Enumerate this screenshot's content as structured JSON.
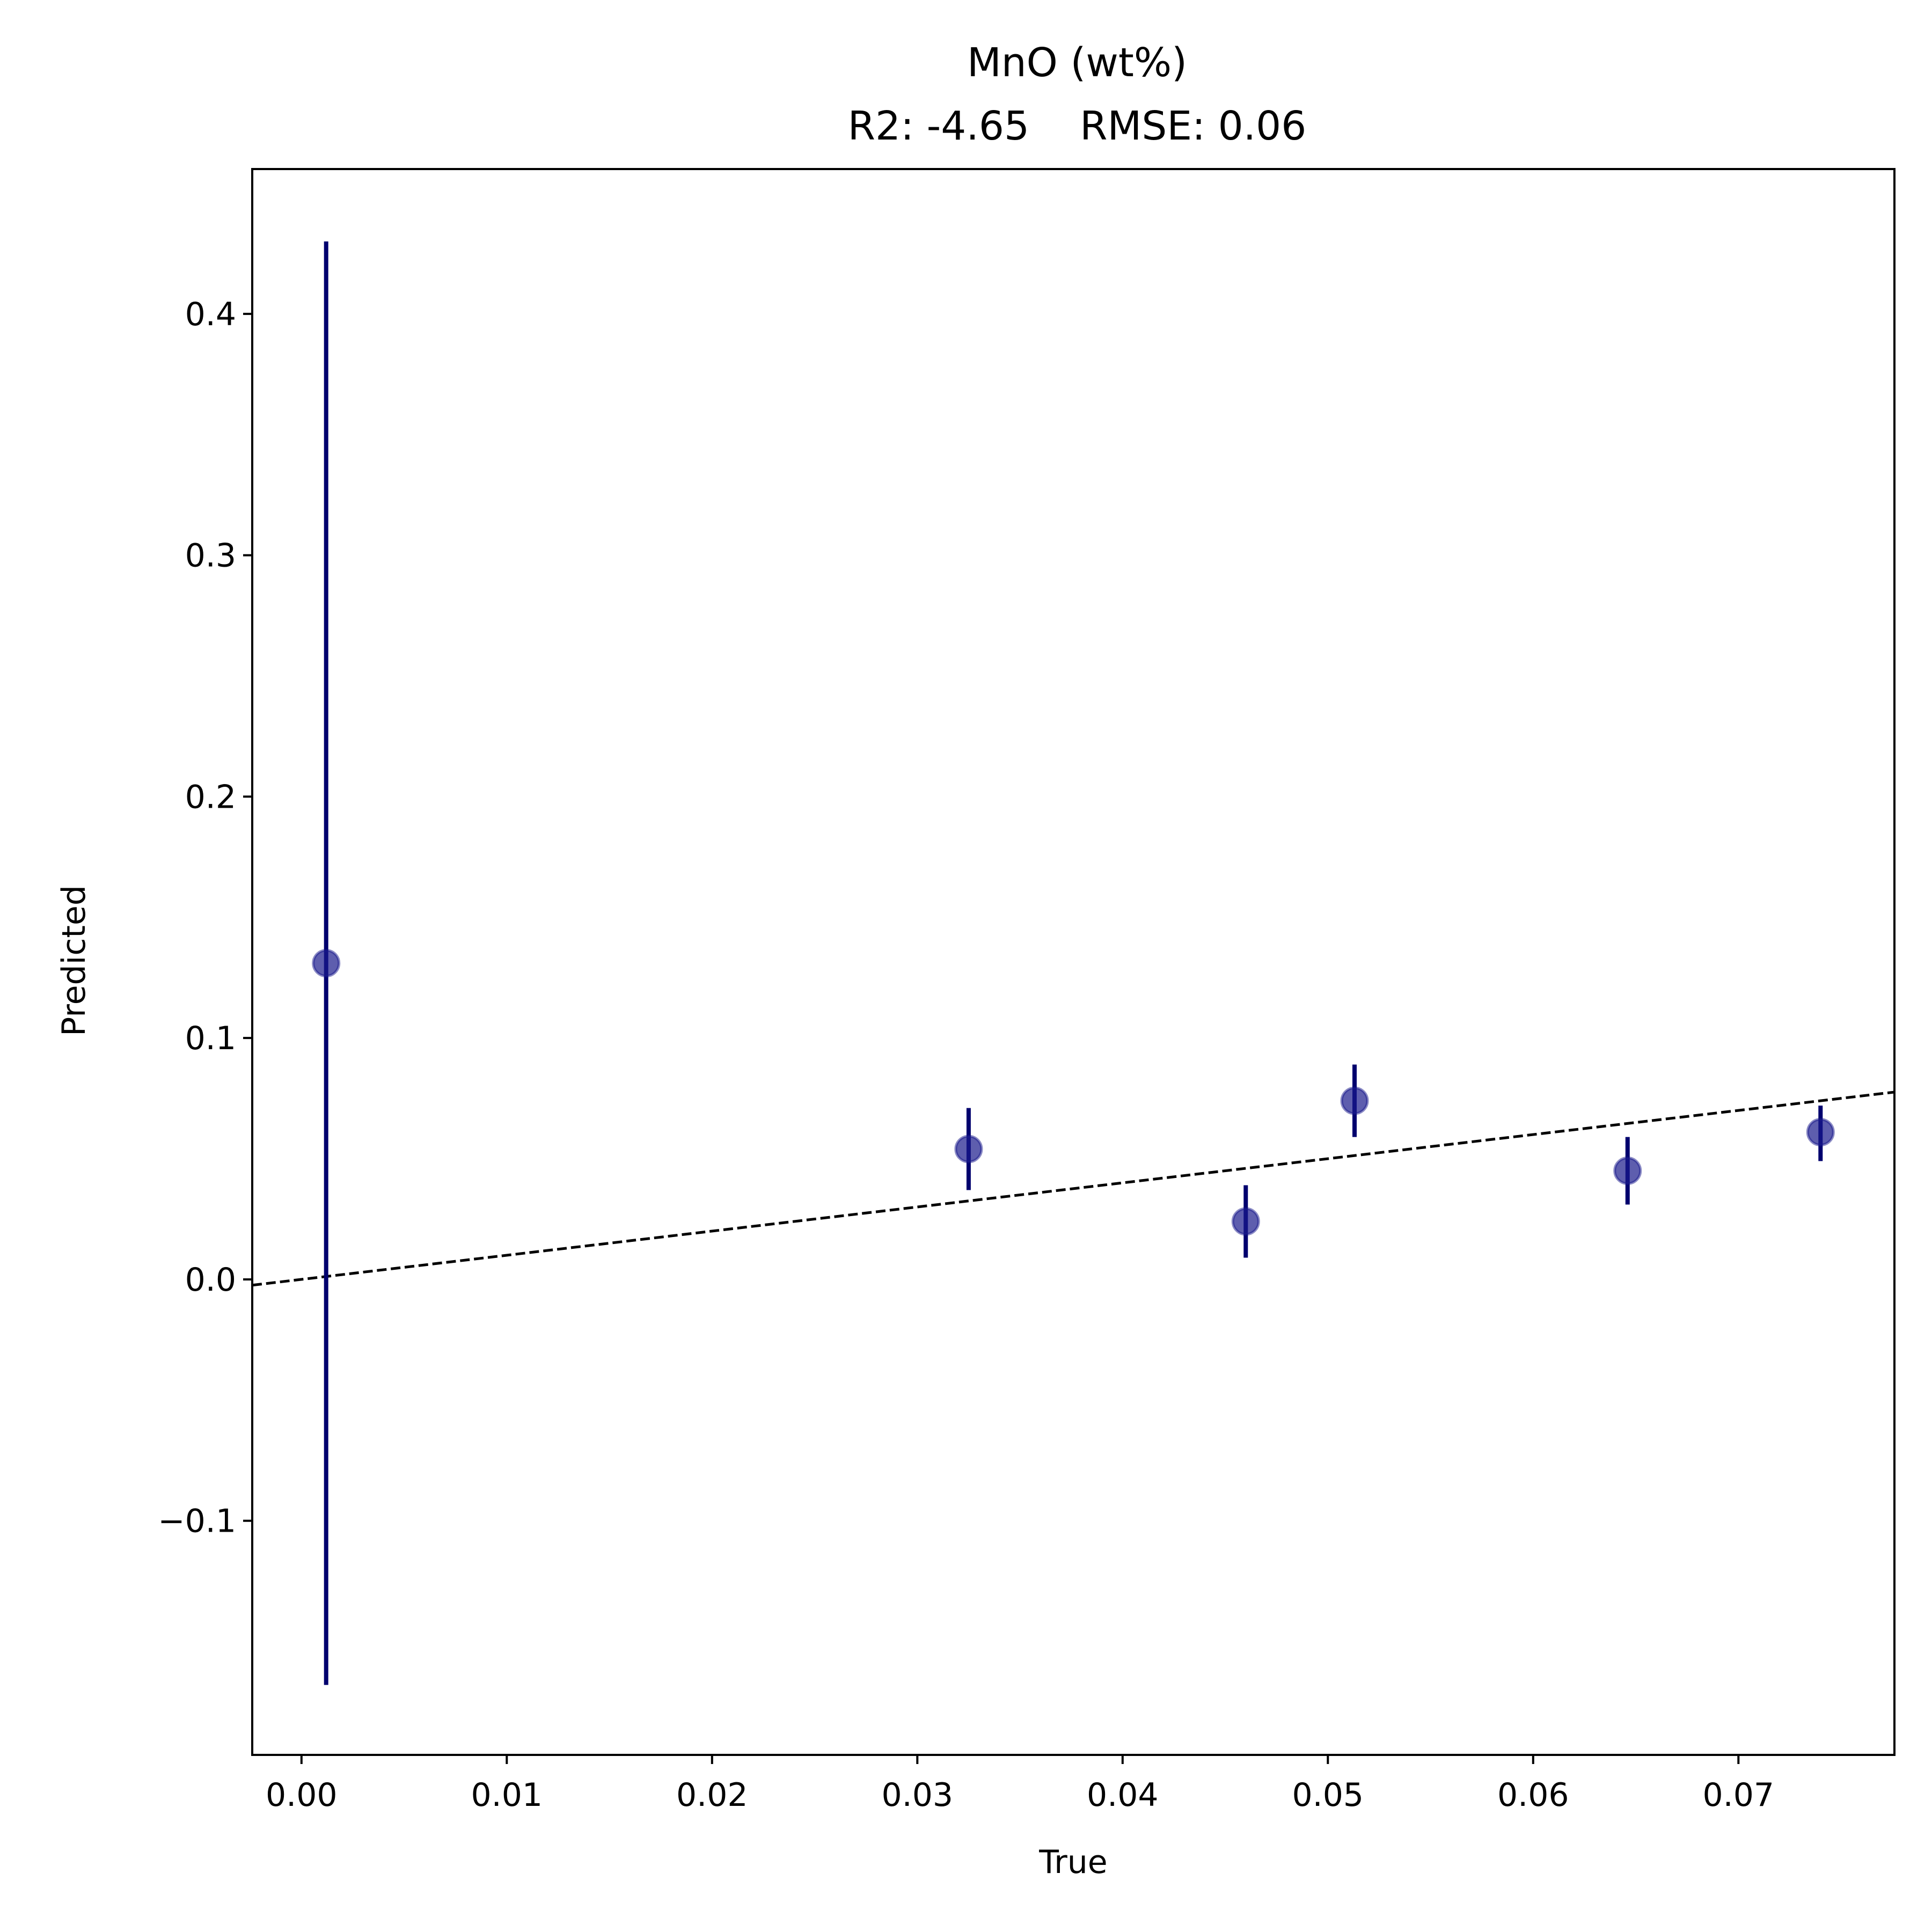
{
  "chart_data": {
    "type": "scatter",
    "title": "MnO (wt%)",
    "subtitle": "R2: -4.65    RMSE: 0.06",
    "xlabel": "True",
    "ylabel": "Predicted",
    "xlim": [
      -0.0024,
      0.0776
    ],
    "ylim": [
      -0.197,
      0.46
    ],
    "x_ticks": [
      0.0,
      0.01,
      0.02,
      0.03,
      0.04,
      0.05,
      0.06,
      0.07
    ],
    "x_tick_labels": [
      "0.00",
      "0.01",
      "0.02",
      "0.03",
      "0.04",
      "0.05",
      "0.06",
      "0.07"
    ],
    "y_ticks": [
      -0.1,
      0.0,
      0.1,
      0.2,
      0.3,
      0.4
    ],
    "y_tick_labels": [
      "−0.1",
      "0.0",
      "0.1",
      "0.2",
      "0.3",
      "0.4"
    ],
    "points": [
      {
        "x": 0.0012,
        "y": 0.131,
        "yerr_low": -0.168,
        "yerr_high": 0.43
      },
      {
        "x": 0.0325,
        "y": 0.054,
        "yerr_low": 0.037,
        "yerr_high": 0.071
      },
      {
        "x": 0.046,
        "y": 0.024,
        "yerr_low": 0.009,
        "yerr_high": 0.039
      },
      {
        "x": 0.0513,
        "y": 0.074,
        "yerr_low": 0.059,
        "yerr_high": 0.089
      },
      {
        "x": 0.0646,
        "y": 0.045,
        "yerr_low": 0.031,
        "yerr_high": 0.059
      },
      {
        "x": 0.074,
        "y": 0.061,
        "yerr_low": 0.049,
        "yerr_high": 0.072
      }
    ],
    "identity_line": {
      "style": "dashed",
      "color": "#000000"
    },
    "marker_color": "#1a1a8c",
    "errorbar_color": "#00006e",
    "grid": false,
    "legend": false
  }
}
